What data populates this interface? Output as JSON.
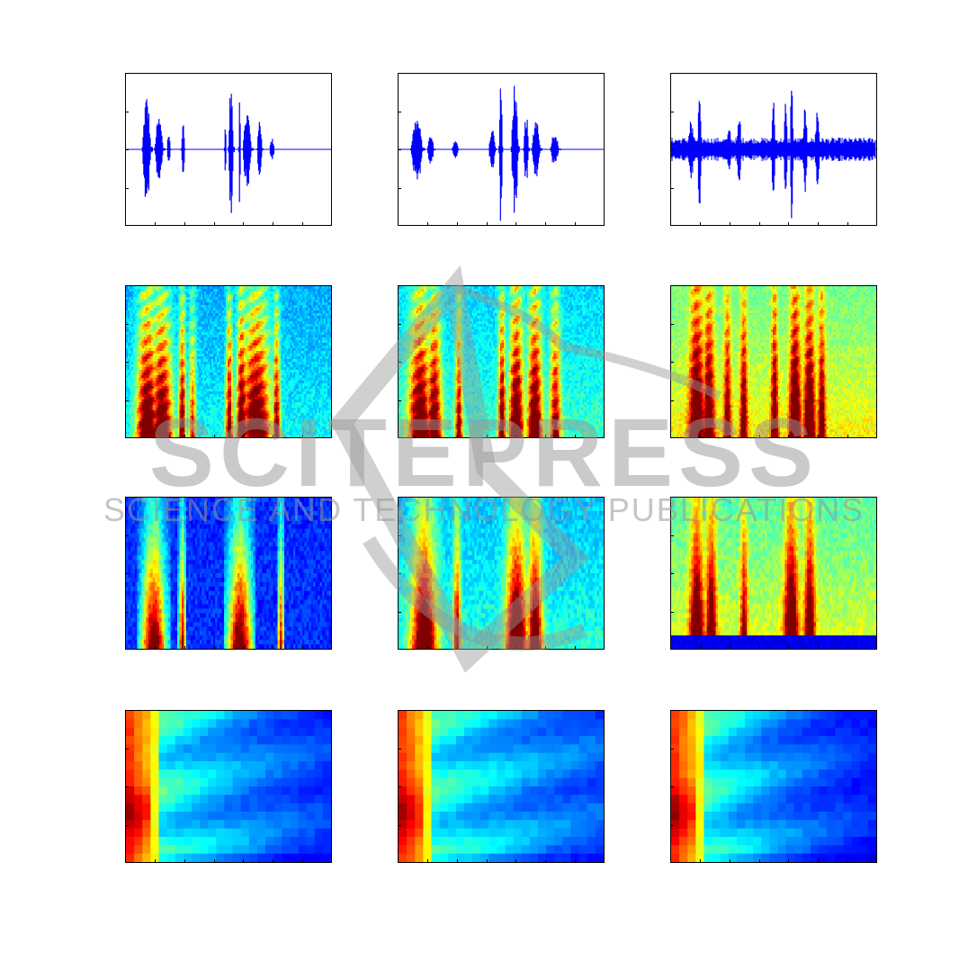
{
  "watermark": {
    "main": "SCITEPRESS",
    "sub": "SCIENCE AND TECHNOLOGY PUBLICATIONS"
  },
  "chart_data": [
    {
      "type": "line",
      "row": 1,
      "col": 1,
      "description": "waveform",
      "title": "",
      "xlabel": "",
      "ylabel": "",
      "grid": false,
      "color": "#0000ff",
      "segments": [
        [
          0.08,
          0.13,
          0.75
        ],
        [
          0.14,
          0.19,
          0.45
        ],
        [
          0.2,
          0.22,
          0.25
        ],
        [
          0.27,
          0.29,
          0.42
        ],
        [
          0.48,
          0.49,
          0.5
        ],
        [
          0.5,
          0.53,
          0.9
        ],
        [
          0.55,
          0.56,
          1.0
        ],
        [
          0.57,
          0.62,
          0.55
        ],
        [
          0.64,
          0.67,
          0.42
        ],
        [
          0.7,
          0.73,
          0.15
        ]
      ]
    },
    {
      "type": "line",
      "row": 1,
      "col": 2,
      "description": "waveform",
      "title": "",
      "xlabel": "",
      "ylabel": "",
      "grid": false,
      "color": "#0000ff",
      "segments": [
        [
          0.06,
          0.13,
          0.45
        ],
        [
          0.14,
          0.18,
          0.2
        ],
        [
          0.26,
          0.3,
          0.12
        ],
        [
          0.44,
          0.48,
          0.3
        ],
        [
          0.49,
          0.51,
          1.0
        ],
        [
          0.55,
          0.59,
          0.95
        ],
        [
          0.61,
          0.64,
          0.5
        ],
        [
          0.65,
          0.7,
          0.45
        ],
        [
          0.74,
          0.79,
          0.25
        ]
      ]
    },
    {
      "type": "line",
      "row": 1,
      "col": 3,
      "description": "waveform",
      "title": "",
      "xlabel": "",
      "ylabel": "",
      "grid": false,
      "color": "#0000ff",
      "noise": 0.13,
      "segments": [
        [
          0.08,
          0.12,
          0.4
        ],
        [
          0.13,
          0.15,
          0.85
        ],
        [
          0.27,
          0.3,
          0.3
        ],
        [
          0.32,
          0.35,
          0.45
        ],
        [
          0.49,
          0.51,
          0.95
        ],
        [
          0.55,
          0.57,
          0.8
        ],
        [
          0.58,
          0.6,
          1.0
        ],
        [
          0.64,
          0.67,
          0.65
        ],
        [
          0.7,
          0.73,
          0.55
        ]
      ]
    },
    {
      "type": "heatmap",
      "row": 2,
      "col": 1,
      "colormap": "jet",
      "description": "spectrogram",
      "title": "",
      "xlabel": "",
      "ylabel": "",
      "base": 0.35,
      "bursts": [
        [
          0.1,
          0.06,
          0.95
        ],
        [
          0.17,
          0.06,
          0.9
        ],
        [
          0.27,
          0.02,
          0.85
        ],
        [
          0.32,
          0.02,
          0.55
        ],
        [
          0.5,
          0.02,
          0.8
        ],
        [
          0.56,
          0.03,
          0.95
        ],
        [
          0.63,
          0.08,
          0.95
        ],
        [
          0.73,
          0.02,
          0.8
        ]
      ]
    },
    {
      "type": "heatmap",
      "row": 2,
      "col": 2,
      "colormap": "jet",
      "description": "spectrogram",
      "title": "",
      "xlabel": "",
      "ylabel": "",
      "base": 0.4,
      "bursts": [
        [
          0.1,
          0.06,
          0.9
        ],
        [
          0.17,
          0.04,
          0.85
        ],
        [
          0.29,
          0.02,
          0.7
        ],
        [
          0.5,
          0.02,
          0.85
        ],
        [
          0.57,
          0.04,
          0.95
        ],
        [
          0.66,
          0.04,
          0.95
        ],
        [
          0.76,
          0.03,
          0.7
        ]
      ]
    },
    {
      "type": "heatmap",
      "row": 2,
      "col": 3,
      "colormap": "jet",
      "description": "spectrogram",
      "title": "",
      "xlabel": "",
      "ylabel": "",
      "base": 0.58,
      "bursts": [
        [
          0.12,
          0.04,
          0.85
        ],
        [
          0.18,
          0.03,
          0.75
        ],
        [
          0.27,
          0.02,
          0.6
        ],
        [
          0.35,
          0.02,
          0.65
        ],
        [
          0.5,
          0.02,
          0.7
        ],
        [
          0.6,
          0.03,
          0.9
        ],
        [
          0.67,
          0.03,
          0.8
        ],
        [
          0.73,
          0.02,
          0.65
        ]
      ]
    },
    {
      "type": "heatmap",
      "row": 3,
      "col": 1,
      "colormap": "jet",
      "description": "filterbank",
      "title": "",
      "xlabel": "",
      "ylabel": "",
      "base": 0.2,
      "bursts": [
        [
          0.13,
          0.07,
          0.95
        ],
        [
          0.27,
          0.02,
          0.85
        ],
        [
          0.55,
          0.07,
          0.95
        ],
        [
          0.75,
          0.02,
          0.75
        ]
      ]
    },
    {
      "type": "heatmap",
      "row": 3,
      "col": 2,
      "colormap": "jet",
      "description": "filterbank",
      "title": "",
      "xlabel": "",
      "ylabel": "",
      "base": 0.38,
      "bursts": [
        [
          0.12,
          0.07,
          0.9
        ],
        [
          0.28,
          0.02,
          0.7
        ],
        [
          0.57,
          0.06,
          0.95
        ],
        [
          0.66,
          0.04,
          0.9
        ]
      ]
    },
    {
      "type": "heatmap",
      "row": 3,
      "col": 3,
      "colormap": "jet",
      "description": "filterbank",
      "title": "",
      "xlabel": "",
      "ylabel": "",
      "base": 0.55,
      "bursts": [
        [
          0.12,
          0.04,
          0.8
        ],
        [
          0.19,
          0.03,
          0.75
        ],
        [
          0.35,
          0.02,
          0.6
        ],
        [
          0.58,
          0.04,
          0.85
        ],
        [
          0.67,
          0.03,
          0.8
        ]
      ]
    },
    {
      "type": "heatmap",
      "row": 4,
      "col": 1,
      "colormap": "jet",
      "description": "coefficients",
      "title": "",
      "xlabel": "",
      "ylabel": "",
      "falloff": 0.28
    },
    {
      "type": "heatmap",
      "row": 4,
      "col": 2,
      "colormap": "jet",
      "description": "coefficients",
      "title": "",
      "xlabel": "",
      "ylabel": "",
      "falloff": 0.22
    },
    {
      "type": "heatmap",
      "row": 4,
      "col": 3,
      "colormap": "jet",
      "description": "coefficients",
      "title": "",
      "xlabel": "",
      "ylabel": "",
      "falloff": 0.34
    }
  ]
}
